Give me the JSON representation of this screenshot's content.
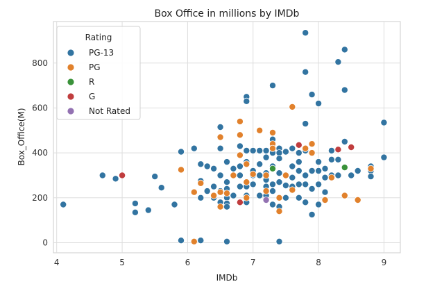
{
  "chart_data": {
    "type": "scatter",
    "title": "Box Office in millions by IMDb",
    "xlabel": "IMDb",
    "ylabel": "Box_Office(M)",
    "xlim": [
      3.95,
      9.25
    ],
    "ylim": [
      -45,
      985
    ],
    "xticks": [
      4,
      5,
      6,
      7,
      8,
      9
    ],
    "yticks": [
      0,
      200,
      400,
      600,
      800
    ],
    "grid": true,
    "legend": {
      "title": "Rating",
      "position": "top-left"
    },
    "series": [
      {
        "name": "PG-13",
        "color": "#3274a1",
        "points": [
          [
            4.1,
            170
          ],
          [
            4.7,
            300
          ],
          [
            4.9,
            285
          ],
          [
            5.2,
            175
          ],
          [
            5.2,
            135
          ],
          [
            5.4,
            145
          ],
          [
            5.5,
            295
          ],
          [
            5.6,
            245
          ],
          [
            5.8,
            170
          ],
          [
            5.9,
            405
          ],
          [
            5.9,
            10
          ],
          [
            6.1,
            420
          ],
          [
            6.2,
            350
          ],
          [
            6.2,
            275
          ],
          [
            6.2,
            200
          ],
          [
            6.2,
            10
          ],
          [
            6.3,
            340
          ],
          [
            6.3,
            230
          ],
          [
            6.4,
            330
          ],
          [
            6.4,
            250
          ],
          [
            6.4,
            200
          ],
          [
            6.5,
            515
          ],
          [
            6.5,
            420
          ],
          [
            6.5,
            300
          ],
          [
            6.5,
            230
          ],
          [
            6.5,
            180
          ],
          [
            6.6,
            360
          ],
          [
            6.6,
            270
          ],
          [
            6.6,
            240
          ],
          [
            6.6,
            200
          ],
          [
            6.6,
            175
          ],
          [
            6.6,
            160
          ],
          [
            6.6,
            5
          ],
          [
            6.7,
            330
          ],
          [
            6.7,
            300
          ],
          [
            6.7,
            210
          ],
          [
            6.8,
            430
          ],
          [
            6.8,
            340
          ],
          [
            6.8,
            300
          ],
          [
            6.8,
            250
          ],
          [
            6.9,
            650
          ],
          [
            6.9,
            630
          ],
          [
            6.9,
            410
          ],
          [
            6.9,
            360
          ],
          [
            6.9,
            250
          ],
          [
            6.9,
            210
          ],
          [
            6.9,
            180
          ],
          [
            7.0,
            410
          ],
          [
            7.0,
            320
          ],
          [
            7.0,
            300
          ],
          [
            7.0,
            260
          ],
          [
            7.1,
            410
          ],
          [
            7.1,
            350
          ],
          [
            7.1,
            300
          ],
          [
            7.1,
            210
          ],
          [
            7.2,
            410
          ],
          [
            7.2,
            380
          ],
          [
            7.2,
            310
          ],
          [
            7.2,
            280
          ],
          [
            7.2,
            250
          ],
          [
            7.2,
            210
          ],
          [
            7.3,
            700
          ],
          [
            7.3,
            460
          ],
          [
            7.3,
            400
          ],
          [
            7.3,
            340
          ],
          [
            7.3,
            260
          ],
          [
            7.3,
            230
          ],
          [
            7.3,
            170
          ],
          [
            7.4,
            420
          ],
          [
            7.4,
            400
          ],
          [
            7.4,
            375
          ],
          [
            7.4,
            310
          ],
          [
            7.4,
            270
          ],
          [
            7.4,
            200
          ],
          [
            7.4,
            160
          ],
          [
            7.4,
            5
          ],
          [
            7.5,
            405
          ],
          [
            7.5,
            300
          ],
          [
            7.5,
            255
          ],
          [
            7.5,
            200
          ],
          [
            7.6,
            420
          ],
          [
            7.6,
            340
          ],
          [
            7.6,
            290
          ],
          [
            7.6,
            250
          ],
          [
            7.7,
            400
          ],
          [
            7.7,
            360
          ],
          [
            7.7,
            320
          ],
          [
            7.7,
            260
          ],
          [
            7.7,
            200
          ],
          [
            7.8,
            935
          ],
          [
            7.8,
            760
          ],
          [
            7.8,
            530
          ],
          [
            7.8,
            410
          ],
          [
            7.8,
            300
          ],
          [
            7.8,
            260
          ],
          [
            7.8,
            180
          ],
          [
            7.9,
            660
          ],
          [
            7.9,
            320
          ],
          [
            7.9,
            240
          ],
          [
            7.9,
            125
          ],
          [
            8.0,
            620
          ],
          [
            8.0,
            360
          ],
          [
            8.0,
            320
          ],
          [
            8.0,
            260
          ],
          [
            8.0,
            170
          ],
          [
            8.1,
            330
          ],
          [
            8.1,
            290
          ],
          [
            8.1,
            225
          ],
          [
            8.2,
            410
          ],
          [
            8.2,
            370
          ],
          [
            8.2,
            300
          ],
          [
            8.3,
            805
          ],
          [
            8.3,
            370
          ],
          [
            8.3,
            300
          ],
          [
            8.4,
            860
          ],
          [
            8.4,
            680
          ],
          [
            8.4,
            450
          ],
          [
            8.5,
            300
          ],
          [
            8.6,
            320
          ],
          [
            8.8,
            340
          ],
          [
            8.8,
            320
          ],
          [
            8.8,
            295
          ],
          [
            9.0,
            535
          ],
          [
            9.0,
            380
          ]
        ]
      },
      {
        "name": "PG",
        "color": "#e1812c",
        "points": [
          [
            5.9,
            325
          ],
          [
            6.1,
            225
          ],
          [
            6.1,
            5
          ],
          [
            6.2,
            265
          ],
          [
            6.4,
            210
          ],
          [
            6.5,
            225
          ],
          [
            6.5,
            160
          ],
          [
            6.5,
            470
          ],
          [
            6.6,
            220
          ],
          [
            6.7,
            300
          ],
          [
            6.8,
            540
          ],
          [
            6.8,
            480
          ],
          [
            6.8,
            390
          ],
          [
            6.9,
            350
          ],
          [
            6.9,
            270
          ],
          [
            6.9,
            200
          ],
          [
            7.0,
            305
          ],
          [
            7.1,
            500
          ],
          [
            7.2,
            300
          ],
          [
            7.2,
            230
          ],
          [
            7.3,
            490
          ],
          [
            7.3,
            440
          ],
          [
            7.3,
            420
          ],
          [
            7.4,
            200
          ],
          [
            7.4,
            140
          ],
          [
            7.5,
            300
          ],
          [
            7.6,
            605
          ],
          [
            7.6,
            235
          ],
          [
            7.8,
            420
          ],
          [
            7.9,
            440
          ],
          [
            7.9,
            400
          ],
          [
            8.1,
            190
          ],
          [
            8.2,
            290
          ],
          [
            8.4,
            210
          ],
          [
            8.6,
            190
          ],
          [
            8.8,
            330
          ]
        ]
      },
      {
        "name": "R",
        "color": "#3a923a",
        "points": [
          [
            7.3,
            330
          ],
          [
            8.4,
            335
          ]
        ]
      },
      {
        "name": "G",
        "color": "#c03d3e",
        "points": [
          [
            5.0,
            300
          ],
          [
            6.8,
            180
          ],
          [
            7.7,
            435
          ],
          [
            8.3,
            415
          ],
          [
            8.5,
            425
          ]
        ]
      },
      {
        "name": "Not Rated",
        "color": "#9372b2",
        "points": [
          [
            7.2,
            190
          ]
        ]
      }
    ]
  }
}
